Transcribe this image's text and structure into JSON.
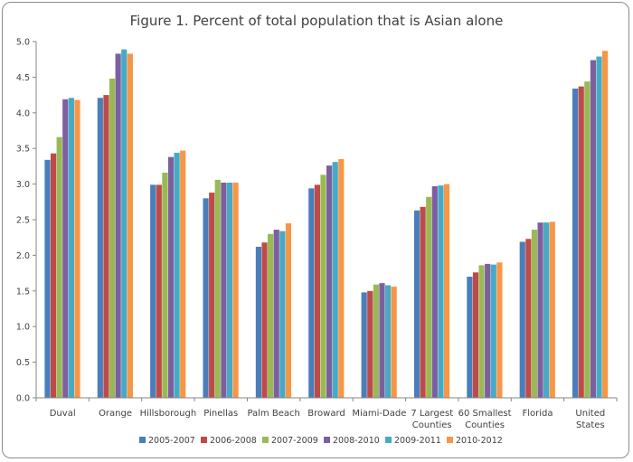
{
  "chart_data": {
    "type": "bar",
    "title": "Figure 1. Percent of total population that is Asian alone",
    "xlabel": "",
    "ylabel": "",
    "ylim": [
      0,
      5
    ],
    "yticks": [
      "0.0",
      "0.5",
      "1.0",
      "1.5",
      "2.0",
      "2.5",
      "3.0",
      "3.5",
      "4.0",
      "4.5",
      "5.0"
    ],
    "grid": false,
    "legend_position": "bottom",
    "categories": [
      [
        "Duval"
      ],
      [
        "Orange"
      ],
      [
        "Hillsborough"
      ],
      [
        "Pinellas"
      ],
      [
        "Palm Beach"
      ],
      [
        "Broward"
      ],
      [
        "Miami-Dade"
      ],
      [
        "7 Largest",
        "Counties"
      ],
      [
        "60 Smallest",
        "Counties"
      ],
      [
        "Florida"
      ],
      [
        "United",
        "States"
      ]
    ],
    "series": [
      {
        "name": "2005-2007",
        "color": "#4a7ebb",
        "values": [
          3.34,
          4.21,
          2.99,
          2.8,
          2.12,
          2.94,
          1.48,
          2.63,
          1.7,
          2.19,
          4.34
        ]
      },
      {
        "name": "2006-2008",
        "color": "#be4b48",
        "values": [
          3.43,
          4.25,
          2.99,
          2.88,
          2.18,
          2.99,
          1.5,
          2.68,
          1.76,
          2.23,
          4.37
        ]
      },
      {
        "name": "2007-2009",
        "color": "#98b954",
        "values": [
          3.66,
          4.48,
          3.16,
          3.06,
          2.3,
          3.13,
          1.59,
          2.82,
          1.86,
          2.36,
          4.44
        ]
      },
      {
        "name": "2008-2010",
        "color": "#7d5fa0",
        "values": [
          4.19,
          4.83,
          3.38,
          3.02,
          2.36,
          3.26,
          1.61,
          2.97,
          1.88,
          2.46,
          4.74
        ]
      },
      {
        "name": "2009-2011",
        "color": "#46aac4",
        "values": [
          4.21,
          4.89,
          3.44,
          3.02,
          2.34,
          3.31,
          1.58,
          2.98,
          1.87,
          2.46,
          4.79
        ]
      },
      {
        "name": "2010-2012",
        "color": "#f79646",
        "values": [
          4.18,
          4.83,
          3.47,
          3.02,
          2.45,
          3.35,
          1.56,
          3.0,
          1.9,
          2.47,
          4.87
        ]
      }
    ]
  }
}
